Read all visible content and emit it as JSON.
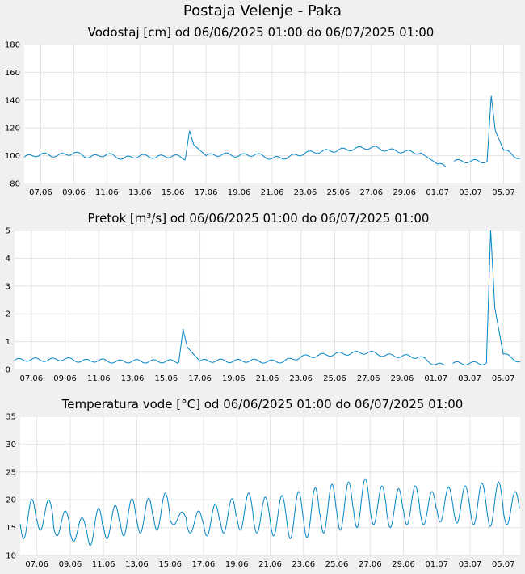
{
  "title": "Postaja Velenje - Paka",
  "colors": {
    "line": "#0085c8",
    "grid": "#e4e4e4",
    "plot_bg": "#ffffff",
    "page_bg": "#f0f0f0"
  },
  "chart_data": [
    {
      "type": "line",
      "title": "Vodostaj [cm] od 06/06/2025 01:00 do 06/07/2025 01:00",
      "xlabel": "",
      "ylabel": "",
      "ylim": [
        80,
        180
      ],
      "yticks": [
        "80",
        "100",
        "120",
        "140",
        "160",
        "180"
      ],
      "xlim": [
        "2025-06-06",
        "2025-07-06"
      ],
      "xticks": [
        "07.06",
        "09.06",
        "11.06",
        "13.06",
        "15.06",
        "17.06",
        "19.06",
        "21.06",
        "23.06",
        "25.06",
        "27.06",
        "29.06",
        "01.07",
        "03.07",
        "05.07"
      ],
      "grid": true,
      "series": [
        {
          "x": [
            "2025-06-06",
            "2025-06-07",
            "2025-06-08",
            "2025-06-09",
            "2025-06-10",
            "2025-06-11",
            "2025-06-12",
            "2025-06-13",
            "2025-06-14",
            "2025-06-15",
            "2025-06-15 18:00",
            "2025-06-16",
            "2025-06-16 06:00",
            "2025-06-17",
            "2025-06-18",
            "2025-06-19",
            "2025-06-20",
            "2025-06-21",
            "2025-06-22",
            "2025-06-23",
            "2025-06-24",
            "2025-06-25",
            "2025-06-26",
            "2025-06-27",
            "2025-06-28",
            "2025-06-29",
            "2025-06-30",
            "2025-07-01",
            "2025-07-01 12:00",
            null,
            "2025-07-02",
            "2025-07-03",
            "2025-07-04",
            "2025-07-04 06:00",
            "2025-07-04 12:00",
            "2025-07-05",
            "2025-07-06"
          ],
          "y": [
            99,
            101,
            100,
            102,
            99,
            101,
            98,
            100,
            99,
            100,
            98,
            118,
            108,
            100,
            101,
            100,
            101,
            98,
            99,
            102,
            103,
            104,
            105,
            106,
            104,
            103,
            102,
            94,
            92,
            null,
            96,
            96,
            96,
            143,
            118,
            104,
            98
          ]
        }
      ]
    },
    {
      "type": "line",
      "title": "Pretok [m³/s] od 06/06/2025 01:00 do 06/07/2025 01:00",
      "xlabel": "",
      "ylabel": "",
      "ylim": [
        0,
        5
      ],
      "yticks": [
        "0",
        "1",
        "2",
        "3",
        "4",
        "5"
      ],
      "xlim": [
        "2025-06-06",
        "2025-07-06"
      ],
      "xticks": [
        "07.06",
        "09.06",
        "11.06",
        "13.06",
        "15.06",
        "17.06",
        "19.06",
        "21.06",
        "23.06",
        "25.06",
        "27.06",
        "29.06",
        "01.07",
        "03.07",
        "05.07"
      ],
      "grid": true,
      "series": [
        {
          "x": [
            "2025-06-06",
            "2025-06-07",
            "2025-06-08",
            "2025-06-09",
            "2025-06-10",
            "2025-06-11",
            "2025-06-12",
            "2025-06-13",
            "2025-06-14",
            "2025-06-15",
            "2025-06-15 18:00",
            "2025-06-16",
            "2025-06-16 06:00",
            "2025-06-17",
            "2025-06-18",
            "2025-06-19",
            "2025-06-20",
            "2025-06-21",
            "2025-06-22",
            "2025-06-23",
            "2025-06-24",
            "2025-06-25",
            "2025-06-26",
            "2025-06-27",
            "2025-06-28",
            "2025-06-29",
            "2025-06-30",
            "2025-07-01",
            "2025-07-01 12:00",
            null,
            "2025-07-02",
            "2025-07-03",
            "2025-07-04",
            "2025-07-04 06:00",
            "2025-07-04 12:00",
            "2025-07-05",
            "2025-07-06"
          ],
          "y": [
            0.33,
            0.36,
            0.34,
            0.38,
            0.3,
            0.33,
            0.28,
            0.3,
            0.29,
            0.3,
            0.28,
            1.45,
            0.8,
            0.3,
            0.32,
            0.3,
            0.32,
            0.28,
            0.3,
            0.45,
            0.5,
            0.55,
            0.58,
            0.62,
            0.5,
            0.48,
            0.45,
            0.18,
            0.15,
            null,
            0.22,
            0.22,
            0.23,
            5.0,
            2.2,
            0.55,
            0.28
          ]
        }
      ]
    },
    {
      "type": "line",
      "title": "Temperatura vode [°C] od 06/06/2025 01:00 do 06/07/2025 01:00",
      "xlabel": "",
      "ylabel": "",
      "ylim": [
        10,
        35
      ],
      "yticks": [
        "10",
        "15",
        "20",
        "25",
        "30",
        "35"
      ],
      "xlim": [
        "2025-06-06",
        "2025-07-06"
      ],
      "xticks": [
        "07.06",
        "09.06",
        "11.06",
        "13.06",
        "15.06",
        "17.06",
        "19.06",
        "21.06",
        "23.06",
        "25.06",
        "27.06",
        "29.06",
        "01.07",
        "03.07",
        "05.07"
      ],
      "grid": true,
      "daily_max": [
        20.1,
        20.0,
        18.0,
        16.8,
        18.5,
        19.0,
        20.2,
        20.3,
        21.2,
        17.8,
        18.0,
        19.2,
        20.2,
        21.2,
        20.5,
        20.8,
        21.5,
        22.2,
        22.8,
        23.2,
        23.8,
        22.5,
        22.0,
        22.5,
        21.5,
        22.3,
        22.5,
        23.0,
        23.2,
        21.5
      ],
      "daily_min": [
        13.0,
        14.5,
        13.5,
        12.5,
        11.8,
        13.0,
        13.5,
        14.0,
        14.5,
        15.5,
        14.0,
        13.5,
        14.0,
        14.5,
        14.0,
        13.5,
        13.0,
        13.2,
        14.0,
        14.5,
        15.0,
        15.5,
        15.0,
        15.5,
        15.5,
        16.0,
        15.8,
        15.5,
        15.2,
        15.5
      ]
    }
  ]
}
